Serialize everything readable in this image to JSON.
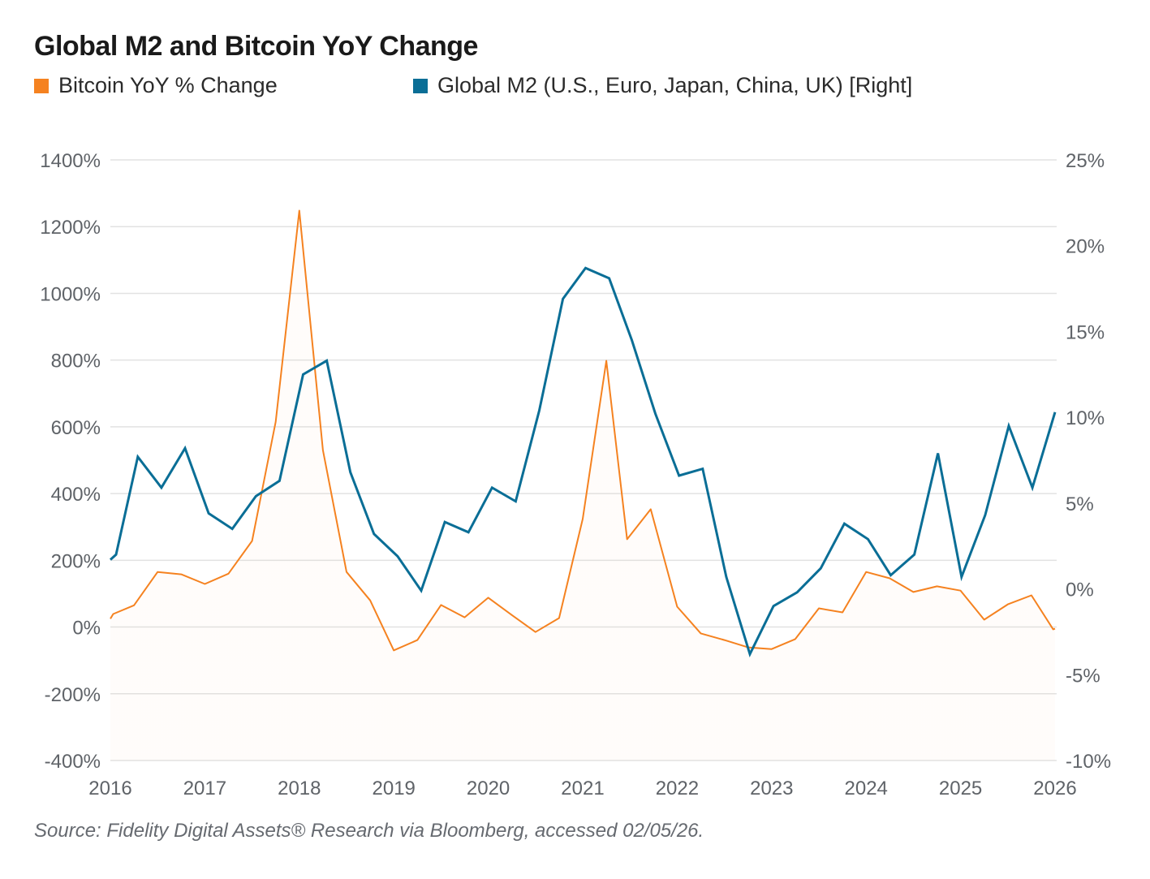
{
  "header": {
    "title": "Global M2 and Bitcoin YoY Change"
  },
  "legend": [
    {
      "label": "Bitcoin YoY % Change",
      "color": "#f58220"
    },
    {
      "label": "Global M2 (U.S., Euro, Japan, China, UK) [Right]",
      "color": "#0a6e96"
    }
  ],
  "footer": {
    "source": "Source: Fidelity Digital Assets® Research via Bloomberg, accessed 02/05/26."
  },
  "chart_data": {
    "type": "line",
    "title": "Global M2 and Bitcoin YoY Change",
    "xlabel": "",
    "ylabel_left": "",
    "ylabel_right": "",
    "grid": true,
    "legend_position": "top-left",
    "x_ticks": [
      "2016",
      "2017",
      "2018",
      "2019",
      "2020",
      "2021",
      "2022",
      "2023",
      "2024",
      "2025",
      "2026"
    ],
    "x_range": [
      2016,
      2026
    ],
    "y_left": {
      "range": [
        -400,
        1400
      ],
      "ticks": [
        1400,
        1200,
        1000,
        800,
        600,
        400,
        200,
        0,
        -200,
        -400
      ],
      "tick_labels": [
        "1400%",
        "1200%",
        "1000%",
        "800%",
        "600%",
        "400%",
        "200%",
        "0%",
        "-200%",
        "-400%"
      ]
    },
    "y_right": {
      "range": [
        -10,
        25
      ],
      "ticks": [
        25,
        20,
        15,
        10,
        5,
        0,
        -5,
        -10
      ],
      "tick_labels": [
        "25%",
        "20%",
        "15%",
        "10%",
        "5%",
        "0%",
        "-5%",
        "-10%"
      ]
    },
    "series": [
      {
        "name": "Bitcoin YoY % Change",
        "axis": "left",
        "style": "area",
        "color": "#f58220",
        "x": [
          2016.0,
          2016.03,
          2016.25,
          2016.5,
          2016.75,
          2017.0,
          2017.25,
          2017.5,
          2017.75,
          2018.0,
          2018.25,
          2018.5,
          2018.75,
          2019.0,
          2019.25,
          2019.5,
          2019.75,
          2020.0,
          2020.25,
          2020.5,
          2020.75,
          2021.0,
          2021.25,
          2021.47,
          2021.72,
          2022.0,
          2022.25,
          2022.5,
          2022.75,
          2023.0,
          2023.25,
          2023.5,
          2023.75,
          2024.0,
          2024.25,
          2024.5,
          2024.75,
          2025.0,
          2025.25,
          2025.5,
          2025.75,
          2025.98,
          2026.0
        ],
        "values": [
          25,
          39,
          65,
          165,
          158,
          129,
          160,
          258,
          615,
          1248,
          530,
          165,
          80,
          -70,
          -39,
          66,
          29,
          88,
          36,
          -15,
          27,
          324,
          798,
          263,
          353,
          61,
          -19,
          -39,
          -61,
          -66,
          -36,
          56,
          44,
          165,
          146,
          105,
          122,
          109,
          22,
          68,
          95,
          -7,
          -5
        ]
      },
      {
        "name": "Global M2 (U.S., Euro, Japan, China, UK) [Right]",
        "axis": "right",
        "style": "line",
        "color": "#0a6e96",
        "x": [
          2016.0,
          2016.06,
          2016.29,
          2016.54,
          2016.79,
          2017.04,
          2017.29,
          2017.54,
          2017.79,
          2018.04,
          2018.29,
          2018.54,
          2018.79,
          2019.04,
          2019.29,
          2019.54,
          2019.79,
          2020.04,
          2020.29,
          2020.54,
          2020.79,
          2021.03,
          2021.28,
          2021.52,
          2021.77,
          2022.02,
          2022.27,
          2022.52,
          2022.77,
          2023.02,
          2023.27,
          2023.52,
          2023.77,
          2024.02,
          2024.26,
          2024.51,
          2024.76,
          2025.01,
          2025.26,
          2025.51,
          2025.76,
          2026.0
        ],
        "values": [
          1.7,
          2.0,
          7.7,
          5.9,
          8.2,
          4.4,
          3.5,
          5.4,
          6.3,
          12.5,
          13.3,
          6.8,
          3.2,
          1.9,
          -0.1,
          3.9,
          3.3,
          5.9,
          5.1,
          10.4,
          16.9,
          18.7,
          18.1,
          14.5,
          10.2,
          6.6,
          7.0,
          0.7,
          -3.8,
          -1.0,
          -0.2,
          1.2,
          3.8,
          2.9,
          0.8,
          2.0,
          7.9,
          0.7,
          4.3,
          9.5,
          5.9,
          10.3
        ]
      }
    ]
  }
}
